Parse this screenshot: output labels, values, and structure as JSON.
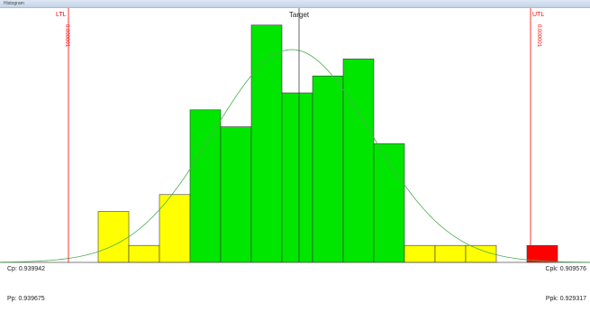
{
  "window": {
    "title": "Histogram"
  },
  "chart_data": {
    "type": "bar",
    "title": "",
    "bins": [
      {
        "count": 3,
        "status": "warning"
      },
      {
        "count": 1,
        "status": "warning"
      },
      {
        "count": 4,
        "status": "warning"
      },
      {
        "count": 9,
        "status": "ok"
      },
      {
        "count": 8,
        "status": "ok"
      },
      {
        "count": 14,
        "status": "ok"
      },
      {
        "count": 10,
        "status": "ok"
      },
      {
        "count": 11,
        "status": "ok"
      },
      {
        "count": 12,
        "status": "ok"
      },
      {
        "count": 7,
        "status": "ok"
      },
      {
        "count": 1,
        "status": "warning"
      },
      {
        "count": 1,
        "status": "warning"
      },
      {
        "count": 1,
        "status": "warning"
      },
      {
        "count": 0,
        "status": "none"
      },
      {
        "count": 1,
        "status": "out"
      }
    ],
    "limits": {
      "ltl": {
        "label": "LTL",
        "value": "0.000001"
      },
      "utl": {
        "label": "UTL",
        "value": "0.000001"
      },
      "target": {
        "label": "Target"
      }
    },
    "normal_curve": true,
    "colors": {
      "ok": "#00e600",
      "warning": "#ffff00",
      "out": "#ff0000",
      "limit": "#ff0000",
      "curve": "#4caf50",
      "target": "#444444"
    }
  },
  "stats": {
    "cp": "Cp: 0.939942",
    "cpk": "Cpk: 0.909576",
    "pp": "Pp: 0.939675",
    "ppk": "Ppk: 0.929317"
  }
}
